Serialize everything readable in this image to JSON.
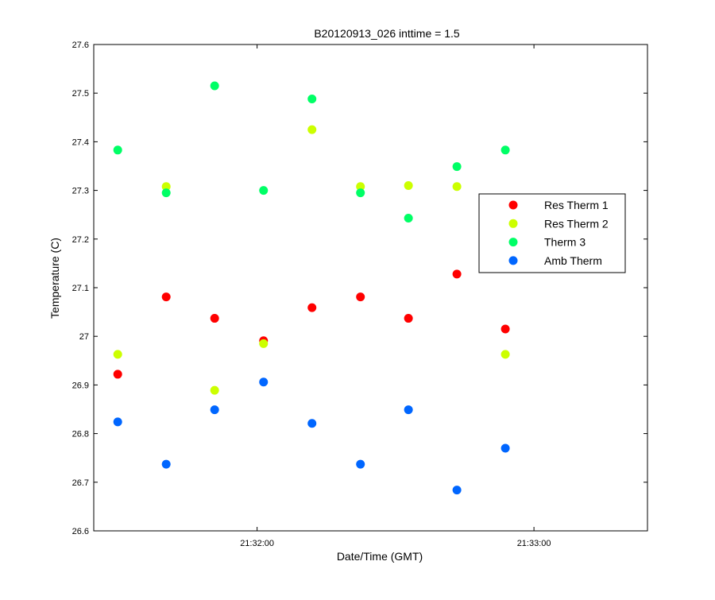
{
  "chart_data": {
    "type": "scatter",
    "title": "B20120913_026 inttime = 1.5",
    "xlabel": "Date/Time (GMT)",
    "ylabel": "Temperature (C)",
    "x_unit": "time of day (GMT)",
    "xlim": [
      "21:31:24.6",
      "21:33:24.6"
    ],
    "ylim": [
      26.6,
      27.6
    ],
    "x_ticks": [
      "21:32:00",
      "21:33:00"
    ],
    "y_ticks": [
      "26.6",
      "26.7",
      "26.8",
      "26.9",
      "27",
      "27.1",
      "27.2",
      "27.3",
      "27.4",
      "27.5",
      "27.6"
    ],
    "legend_position": "right",
    "grid": false,
    "x": [
      "21:31:29.8",
      "21:31:40.3",
      "21:31:50.8",
      "21:32:01.4",
      "21:32:11.9",
      "21:32:22.4",
      "21:32:32.8",
      "21:32:43.3",
      "21:32:53.8"
    ],
    "series": [
      {
        "name": "Res Therm 1",
        "color": "#ff0000",
        "values": [
          26.922,
          27.081,
          27.037,
          26.991,
          27.059,
          27.081,
          27.037,
          27.128,
          27.015
        ]
      },
      {
        "name": "Res Therm 2",
        "color": "#ccff00",
        "values": [
          26.963,
          27.308,
          26.889,
          26.985,
          27.425,
          27.308,
          27.31,
          27.308,
          26.963
        ]
      },
      {
        "name": "Therm 3",
        "color": "#00ff66",
        "values": [
          27.383,
          27.295,
          27.515,
          27.3,
          27.488,
          27.295,
          27.243,
          27.349,
          27.383
        ]
      },
      {
        "name": "Amb Therm",
        "color": "#0066ff",
        "values": [
          26.824,
          26.737,
          26.849,
          26.906,
          26.821,
          26.737,
          26.849,
          26.684,
          26.77
        ]
      }
    ]
  }
}
